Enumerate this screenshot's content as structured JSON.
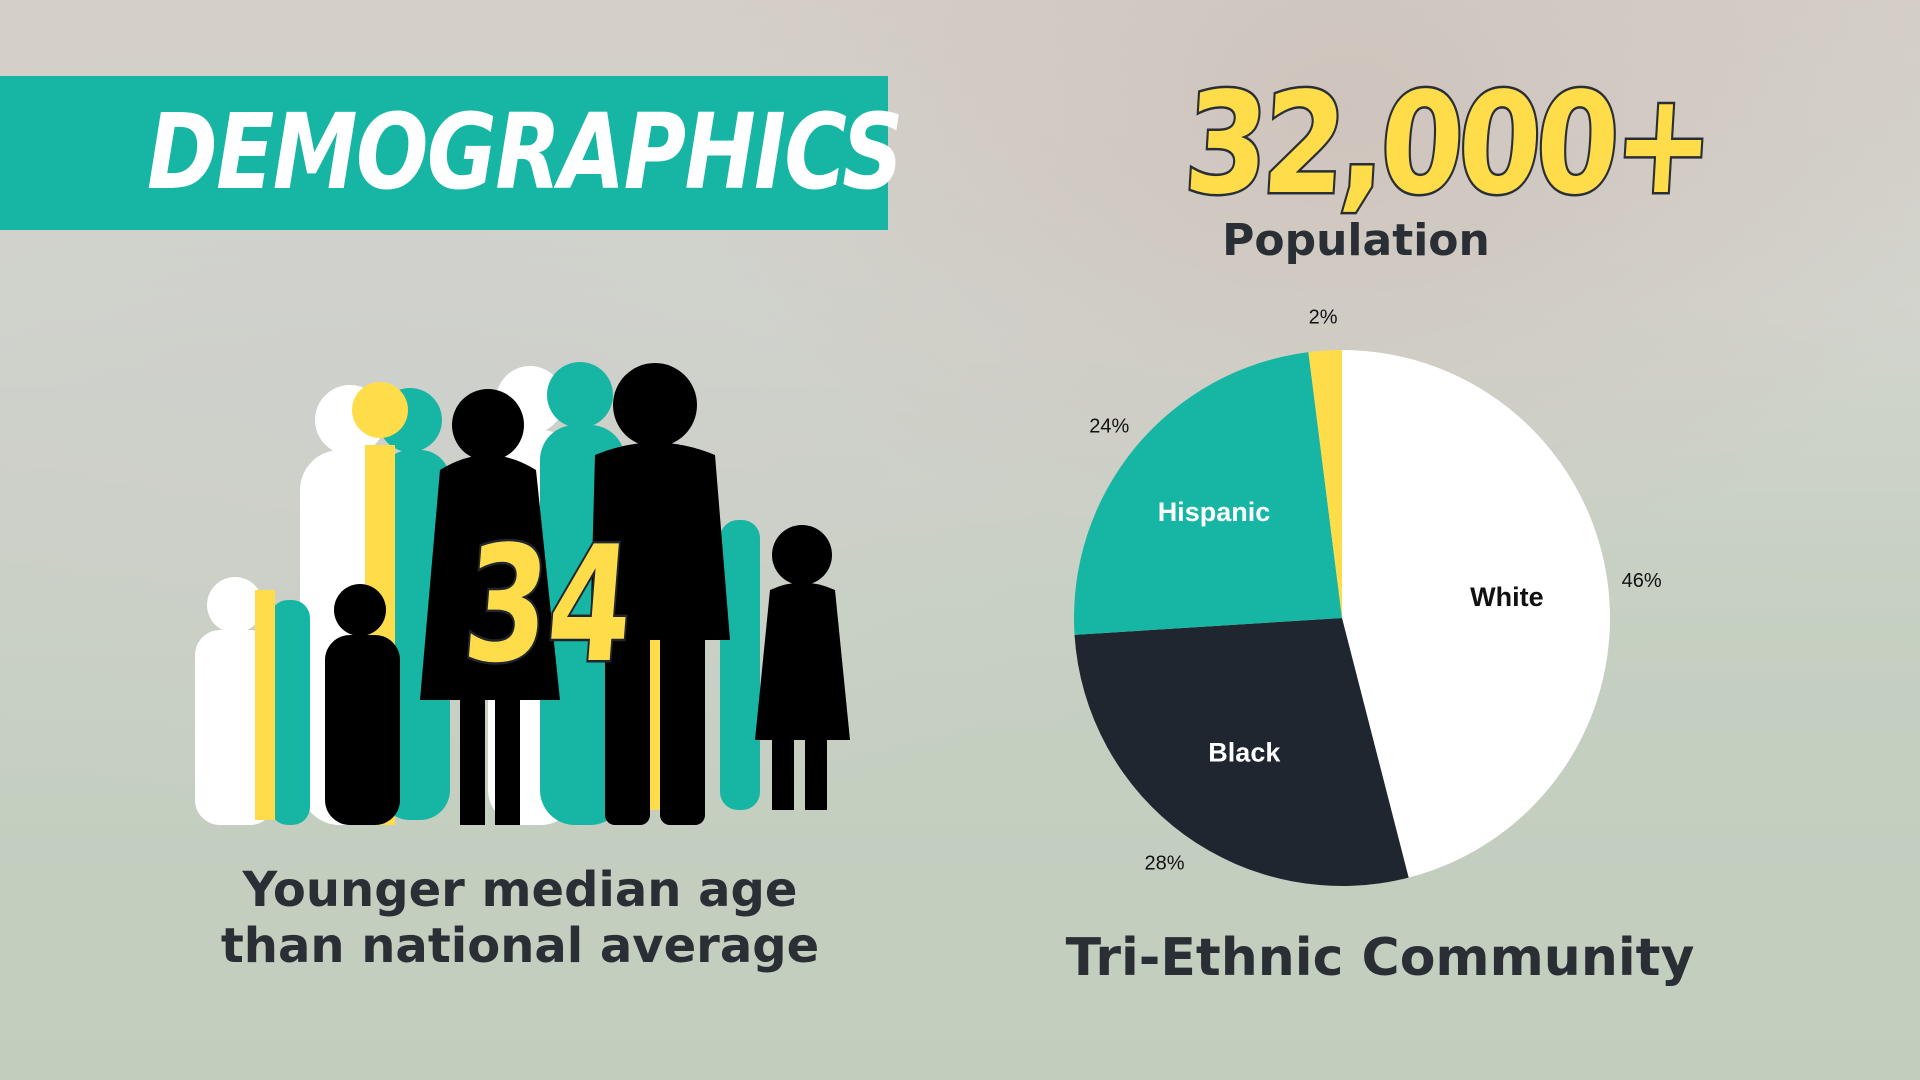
{
  "header": {
    "title": "DEMOGRAPHICS"
  },
  "population": {
    "value": "32,000+",
    "label": "Population"
  },
  "median_age": {
    "value": "34",
    "caption_line1": "Younger median age",
    "caption_line2": "than national average"
  },
  "colors": {
    "teal": "#17b6a4",
    "yellow": "#ffdc4a",
    "dark": "#1f2630",
    "white": "#ffffff"
  },
  "chart_data": {
    "type": "pie",
    "title": "Tri-Ethnic Community",
    "slices": [
      {
        "name": "White",
        "value": 46,
        "label": "46%",
        "color": "#ffffff"
      },
      {
        "name": "Black",
        "value": 28,
        "label": "28%",
        "color": "#1f2630"
      },
      {
        "name": "Hispanic",
        "value": 24,
        "label": "24%",
        "color": "#17b6a4"
      },
      {
        "name": "",
        "value": 2,
        "label": "2%",
        "color": "#ffdc4a"
      }
    ],
    "start": "top",
    "direction": "clockwise"
  }
}
